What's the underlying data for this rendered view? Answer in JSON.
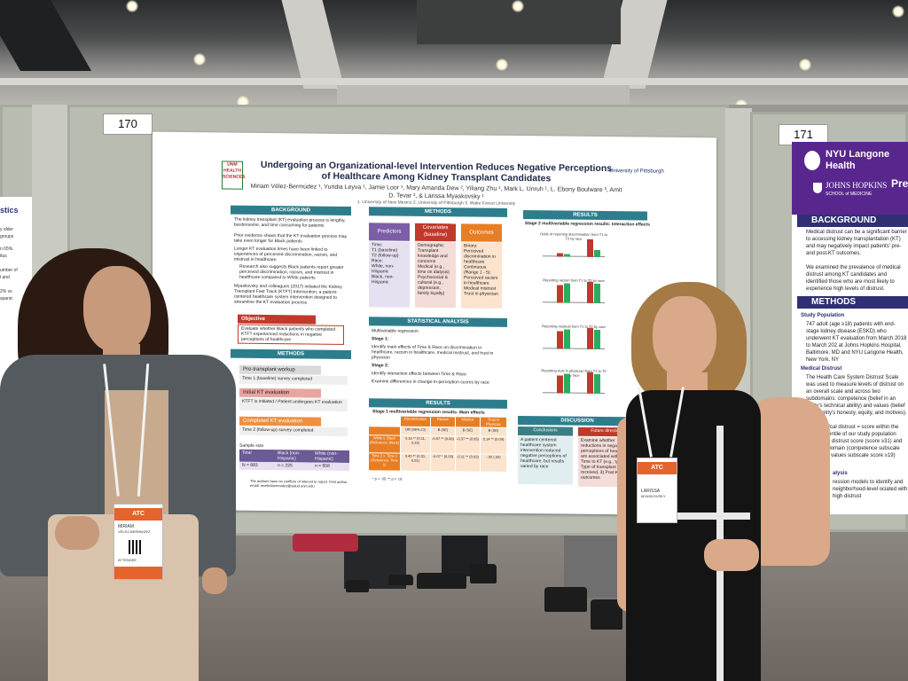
{
  "scene": {
    "board_numbers": [
      "170",
      "171"
    ]
  },
  "main_poster": {
    "title": "Undergoing an Organizational-level Intervention Reduces Negative Perceptions of Healthcare Among Kidney Transplant Candidates",
    "authors": "Miriam Vélez-Bermúdez ¹, Yuridia Leyva ¹, Jamie Loor ¹, Mary Amanda Dew ², Yiliang Zhu ¹, Mark L. Unruh ¹, L. Ebony Boulware ³, Amit D. Tevar ², & Larissa Myaskovsky ¹",
    "affiliations": "1. University of New Mexico 2. University of Pittsburgh 3. Wake Forest University",
    "logo_left": "UNM HEALTH SCIENCES",
    "logo_right": "University of Pittsburgh",
    "background_head": "BACKGROUND",
    "background_bullets": [
      "The kidney transplant (KT) evaluation process is lengthy, burdensome, and time consuming for patients",
      "Prior evidence shows that the KT evaluation process may take even longer for Black patients",
      "Longer KT evaluation times have been linked to experiences of perceived discrimination, racism, and mistrust in healthcare",
      "Research also suggests Black patients report greater perceived discrimination, racism, and mistrust in healthcare compared to White patients",
      "Myaskovsky and colleagues (2017) initiated the Kidney Transplant Fast Track (KTFT) Intervention, a patient-centered healthcare system intervention designed to streamline the KT evaluation process"
    ],
    "objective_head": "Objective",
    "objective_text": "Evaluate whether Black patients who completed KTFT experienced reductions in negative perceptions of healthcare",
    "methods_left_head": "METHODS",
    "steps": [
      {
        "head": "Pre-transplant workup",
        "text": "Time 1 (baseline) survey completed"
      },
      {
        "head": "Initial KT evaluation",
        "text": "KTFT is initiated / Patient undergoes KT evaluation"
      },
      {
        "head": "Completed KT evaluation",
        "text": "Time 2 (follow-up) survey completed"
      }
    ],
    "sample_size_label": "Sample size",
    "sample_headers": [
      "Total",
      "Black (non-Hispanic)",
      "White (non-Hispanic)"
    ],
    "sample_values": [
      "N = 883",
      "n = 225",
      "n = 658"
    ],
    "conflict_note": "The authors have no conflicts of interest to report. First author email: mvelezbermudez@salud.unm.edu",
    "methods_center_head": "METHODS",
    "methods_columns": [
      {
        "head": "Predictors",
        "items": [
          "Time:",
          "T1 (baseline)",
          "T2 (follow-up)",
          "Race:",
          "White, non-Hispanic",
          "Black, non-Hispanic"
        ]
      },
      {
        "head": "Covariates (baseline)",
        "items": [
          "Demographic",
          "Transplant knowledge and concerns",
          "Medical (e.g., time on dialysis)",
          "Psychosocial & cultural (e.g., depression, family loyalty)"
        ]
      },
      {
        "head": "Outcomes",
        "items": [
          "Binary:",
          "Perceived discrimination in healthcare",
          "Continuous (Range 1 - 5):",
          "Perceived racism in healthcare",
          "Medical mistrust",
          "Trust in physician"
        ]
      }
    ],
    "stats_head": "STATISTICAL ANALYSIS",
    "stats_text": [
      "Multivariable regression",
      "Stage 1:",
      "Identify main effects of Time & Race on discrimination in healthcare, racism in healthcare, medical mistrust, and trust in physician",
      "Stage 2:",
      "Identify interaction effects between Time & Race",
      "Examine differences in change-in-perception scores by race"
    ],
    "results_center_head": "RESULTS",
    "results_table_caption": "Stage 1 multivariable regression results: Main effects",
    "results_table_headers": [
      "",
      "Discrimination",
      "Racism",
      "Mistrust",
      "Trust in Physician"
    ],
    "results_table_rows": [
      [
        "",
        "OR (95% CI)",
        "B (SE)",
        "B (SE)",
        "B (SE)"
      ],
      [
        "White v. Black (Reference: Black)",
        "0.16 ** (0.11, 0.22)",
        "-0.57 ** (0.06)",
        "-0.37 ** (0.05)",
        "0.14 ** (0.04)"
      ],
      [
        "Time 2 v. Time 1 (Reference: Time 1)",
        "0.40 ** (0.31, 0.51)",
        "-0.07 * (0.03)",
        "-0.11 ** (0.03)",
        "-.02 (.02)"
      ]
    ],
    "results_table_note": "* p < .05, ** p < .01",
    "results_right_head": "RESULTS",
    "results_right_caption": "Stage 2 multivariable regression results: Interaction effects",
    "mini_charts": [
      {
        "caption": "Odds of reporting discrimination from T1 to T2 by race"
      },
      {
        "caption": "Reporting racism from T1 to T2 by race"
      },
      {
        "caption": "Reporting mistrust from T1 to T2 by race"
      },
      {
        "caption": "Reporting trust in physician from T1 to T2 by race"
      }
    ],
    "discussion_head": "DISCUSSION",
    "conclusions_head": "Conclusions",
    "conclusions_text": "A patient-centered healthcare system intervention reduced negative perceptions of healthcare, but results varied by race",
    "future_head": "Future directions",
    "future_text": "Examine whether reductions in negative perceptions of healthcare are associated with: 1) Time to KT (e.g., type), 2) Type of transplant received, 3) Post-KT outcomes"
  },
  "right_poster": {
    "header_lines": [
      "NYU Langone",
      "Health",
      "JOHNS HOPKINS",
      "SCHOOL of MEDICINE",
      "Pre"
    ],
    "background_head": "BACKGROUND",
    "background_text": [
      "Medical distrust can be a significant barrier to accessing kidney transplantation (KT) and may negatively impact patients' pre- and post-KT outcomes.",
      "We examined the prevalence of medical distrust among KT candidates and identified those who are most likely to experience high levels of distrust."
    ],
    "methods_head": "METHODS",
    "study_population_head": "Study Population",
    "study_population_text": "747 adult (age ≥18) patients with end-stage kidney disease (ESKD) who underwent KT evaluation from March 2018 to March 202 at Johns Hopkins Hospital, Baltimore, MD and NYU Langone Health, New York, NY",
    "medical_distrust_head": "Medical Distrust",
    "medical_distrust_text": "The Health Care System Distrust Scale was used to measure levels of distrust on an overall scale and across two subdomains: competence (belief in an entity's technical ability) and values (belief in an entity's honesty, equity, and motives).",
    "high_distrust_text": "High medical distrust = score within the 90th percentile of our study population composite distrust score (score ≥31) and each subdomain (competence subscale score ≥19 values subscale score ≥19)",
    "analysis_head": "alysis",
    "analysis_text": "ression models to identify and neighborhood-level ociated with high distrust"
  },
  "left_poster": {
    "fragment_lines": [
      "stics",
      "y older",
      "groups",
      "n 65%.",
      "itus",
      "umber of",
      "l and",
      "2% vs",
      "spanic"
    ]
  },
  "people": {
    "left_badge": {
      "name": "MIRIAM",
      "surname": "VELEZ-BERMUDEZ",
      "role": "ATTENDEE",
      "event": "ATC"
    },
    "right_badge": {
      "name": "LARISSA",
      "surname": "MYASKOVSKY",
      "event": "ATC"
    }
  },
  "colors": {
    "teal": "#2e7d8c",
    "red": "#c0392b",
    "orange": "#e87e24",
    "purple": "#7b5ea7",
    "nyu_purple": "#58278d",
    "navy": "#2f2f72"
  }
}
